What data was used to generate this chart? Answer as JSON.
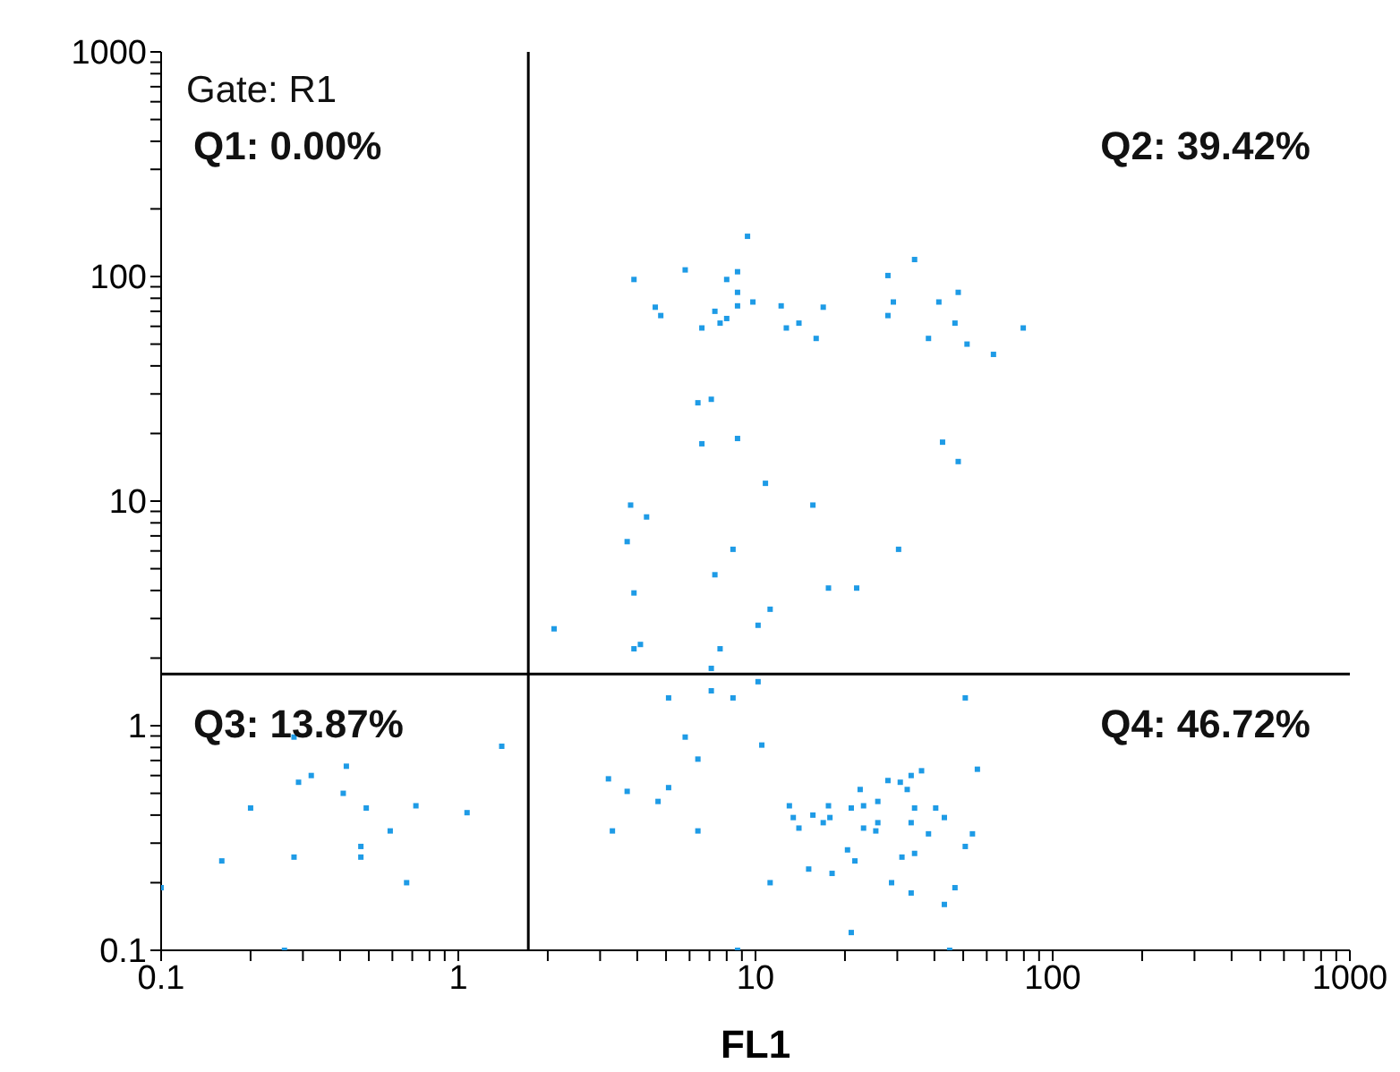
{
  "chart_data": {
    "type": "scatter",
    "xlabel": "FL1",
    "log": "xy",
    "marker": "square",
    "xlim": [
      0.1,
      1000
    ],
    "ylim": [
      0.1,
      1000
    ],
    "xticks": [
      0.1,
      {
        "value": 0.2,
        "label": null
      },
      {
        "value": 0.3,
        "label": null
      },
      {
        "value": 0.4,
        "label": null
      },
      {
        "value": 0.5,
        "label": null
      },
      {
        "value": 0.6,
        "label": null
      },
      {
        "value": 0.7,
        "label": null
      },
      {
        "value": 0.8,
        "label": null
      },
      {
        "value": 0.9,
        "label": null
      },
      1,
      {
        "value": 2,
        "label": null
      },
      {
        "value": 3,
        "label": null
      },
      {
        "value": 4,
        "label": null
      },
      {
        "value": 5,
        "label": null
      },
      {
        "value": 6,
        "label": null
      },
      {
        "value": 7,
        "label": null
      },
      {
        "value": 8,
        "label": null
      },
      {
        "value": 9,
        "label": null
      },
      10,
      {
        "value": 20,
        "label": null
      },
      {
        "value": 30,
        "label": null
      },
      {
        "value": 40,
        "label": null
      },
      {
        "value": 50,
        "label": null
      },
      {
        "value": 60,
        "label": null
      },
      {
        "value": 70,
        "label": null
      },
      {
        "value": 80,
        "label": null
      },
      {
        "value": 90,
        "label": null
      },
      100,
      {
        "value": 200,
        "label": null
      },
      {
        "value": 300,
        "label": null
      },
      {
        "value": 400,
        "label": null
      },
      {
        "value": 500,
        "label": null
      },
      {
        "value": 600,
        "label": null
      },
      {
        "value": 700,
        "label": null
      },
      {
        "value": 800,
        "label": null
      },
      {
        "value": 900,
        "label": null
      },
      1000
    ],
    "yticks": [
      0.1,
      {
        "value": 0.2,
        "label": null
      },
      {
        "value": 0.3,
        "label": null
      },
      {
        "value": 0.4,
        "label": null
      },
      {
        "value": 0.5,
        "label": null
      },
      {
        "value": 0.6,
        "label": null
      },
      {
        "value": 0.7,
        "label": null
      },
      {
        "value": 0.8,
        "label": null
      },
      {
        "value": 0.9,
        "label": null
      },
      1,
      {
        "value": 2,
        "label": null
      },
      {
        "value": 3,
        "label": null
      },
      {
        "value": 4,
        "label": null
      },
      {
        "value": 5,
        "label": null
      },
      {
        "value": 6,
        "label": null
      },
      {
        "value": 7,
        "label": null
      },
      {
        "value": 8,
        "label": null
      },
      {
        "value": 9,
        "label": null
      },
      10,
      {
        "value": 20,
        "label": null
      },
      {
        "value": 30,
        "label": null
      },
      {
        "value": 40,
        "label": null
      },
      {
        "value": 50,
        "label": null
      },
      {
        "value": 60,
        "label": null
      },
      {
        "value": 70,
        "label": null
      },
      {
        "value": 80,
        "label": null
      },
      {
        "value": 90,
        "label": null
      },
      100,
      {
        "value": 200,
        "label": null
      },
      {
        "value": 300,
        "label": null
      },
      {
        "value": 400,
        "label": null
      },
      {
        "value": 500,
        "label": null
      },
      {
        "value": 600,
        "label": null
      },
      {
        "value": 700,
        "label": null
      },
      {
        "value": 800,
        "label": null
      },
      {
        "value": 900,
        "label": null
      },
      1000
    ],
    "ref_lines": [
      {
        "axis": "x",
        "value": 1.72,
        "color": "#000000"
      },
      {
        "axis": "y",
        "value": 1.7,
        "color": "#000000"
      }
    ],
    "annotations": [
      "Gate: R1",
      "Q1: 0.00%",
      "Q2: 39.42%",
      "Q3: 13.87%",
      "Q4: 46.72%"
    ],
    "series": [
      {
        "color": "#1e9be6",
        "x": [
          9.4,
          3.9,
          5.8,
          8.7,
          8.0,
          8.7,
          4.6,
          4.8,
          7.3,
          8.7,
          9.8,
          8.0,
          6.6,
          7.6,
          12.2,
          16.9,
          12.7,
          14.0,
          16.0,
          34.3,
          27.9,
          29.1,
          27.9,
          41.4,
          48.1,
          46.9,
          38.2,
          51.5,
          63.2,
          79.6,
          6.4,
          7.1,
          8.7,
          6.6,
          42.6,
          48.1,
          10.8,
          15.6,
          3.8,
          4.3,
          3.7,
          8.4,
          30.3,
          7.3,
          3.9,
          17.6,
          21.9,
          11.2,
          10.2,
          2.1,
          4.1,
          3.9,
          7.6,
          7.1,
          0.28,
          1.4,
          0.42,
          0.32,
          0.29,
          0.41,
          0.2,
          0.49,
          0.72,
          1.07,
          0.59,
          0.47,
          0.47,
          0.16,
          0.28,
          0.67,
          0.1,
          0.26,
          5.1,
          7.1,
          8.4,
          10.2,
          50.8,
          5.8,
          6.4,
          10.5,
          3.2,
          3.7,
          5.1,
          4.7,
          3.3,
          6.4,
          13.0,
          13.4,
          14.0,
          15.6,
          16.9,
          17.6,
          17.8,
          21.0,
          22.5,
          23.1,
          23.1,
          25.8,
          25.8,
          25.4,
          27.9,
          30.7,
          32.4,
          33.4,
          36.2,
          34.3,
          33.4,
          40.4,
          43.2,
          38.2,
          53.7,
          55.8,
          50.8,
          20.4,
          21.6,
          31.1,
          34.3,
          18.1,
          15.1,
          11.2,
          28.7,
          33.4,
          46.9,
          43.2,
          21.0,
          45.0,
          8.7
        ],
        "values": [
          151,
          97,
          107,
          105,
          97,
          85,
          73,
          67,
          70,
          74,
          77,
          65,
          59,
          62,
          74,
          73,
          59,
          62,
          53,
          119,
          101,
          77,
          67,
          77,
          85,
          62,
          53,
          50,
          45,
          59,
          27.4,
          28.4,
          19.0,
          18.0,
          18.3,
          15.0,
          12.0,
          9.6,
          9.6,
          8.5,
          6.6,
          6.1,
          6.1,
          4.7,
          3.9,
          4.1,
          4.1,
          3.3,
          2.8,
          2.7,
          2.3,
          2.2,
          2.2,
          1.8,
          0.89,
          0.81,
          0.66,
          0.6,
          0.56,
          0.5,
          0.43,
          0.43,
          0.44,
          0.41,
          0.34,
          0.29,
          0.26,
          0.25,
          0.26,
          0.2,
          0.19,
          0.1,
          1.33,
          1.43,
          1.33,
          1.57,
          1.33,
          0.89,
          0.71,
          0.82,
          0.58,
          0.51,
          0.53,
          0.46,
          0.34,
          0.34,
          0.44,
          0.39,
          0.35,
          0.4,
          0.37,
          0.44,
          0.39,
          0.43,
          0.52,
          0.44,
          0.35,
          0.46,
          0.37,
          0.34,
          0.57,
          0.56,
          0.52,
          0.6,
          0.63,
          0.43,
          0.37,
          0.43,
          0.39,
          0.33,
          0.33,
          0.64,
          0.29,
          0.28,
          0.25,
          0.26,
          0.27,
          0.22,
          0.23,
          0.2,
          0.2,
          0.18,
          0.19,
          0.16,
          0.12,
          0.1,
          0.1
        ]
      }
    ]
  }
}
